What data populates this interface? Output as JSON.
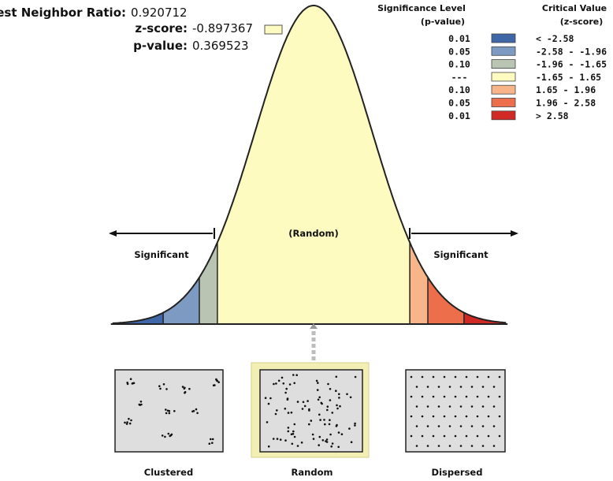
{
  "stats": {
    "ratio_label": "Nearest Neighbor Ratio:",
    "ratio_value": "0.920712",
    "z_label": "z-score:",
    "z_value": "-0.897367",
    "p_label": "p-value:",
    "p_value": "0.369523"
  },
  "legend": {
    "sig_header_line1": "Significance Level",
    "sig_header_line2": "(p-value)",
    "crit_header_line1": "Critical Value",
    "crit_header_line2": "(z-score)",
    "rows": [
      {
        "p": "0.01",
        "z": "< -2.58",
        "color": "#3f66a6"
      },
      {
        "p": "0.05",
        "z": "-2.58 - -1.96",
        "color": "#7d9ac2"
      },
      {
        "p": "0.10",
        "z": "-1.96 - -1.65",
        "color": "#b9c4b2"
      },
      {
        "p": "---",
        "z": "-1.65 - 1.65",
        "color": "#fefbc0"
      },
      {
        "p": "0.10",
        "z": "1.65 - 1.96",
        "color": "#f8b58a"
      },
      {
        "p": "0.05",
        "z": "1.96 - 2.58",
        "color": "#ec6e4b"
      },
      {
        "p": "0.01",
        "z": "> 2.58",
        "color": "#d12a26"
      }
    ]
  },
  "curve": {
    "center_label": "(Random)",
    "left_label": "Significant",
    "right_label": "Significant",
    "z_score": -0.897367
  },
  "panels": [
    {
      "label": "Clustered",
      "pattern": "clustered",
      "selected": false
    },
    {
      "label": "Random",
      "pattern": "random",
      "selected": true
    },
    {
      "label": "Dispersed",
      "pattern": "dispersed",
      "selected": false
    }
  ],
  "colors": {
    "curve_line": "#222222",
    "panel_fill": "#dedede",
    "selected_frame": "#f3efb4",
    "dot": "#111111",
    "connector": "#bdbdbd",
    "marker_box_fill": "#fefbc0"
  }
}
